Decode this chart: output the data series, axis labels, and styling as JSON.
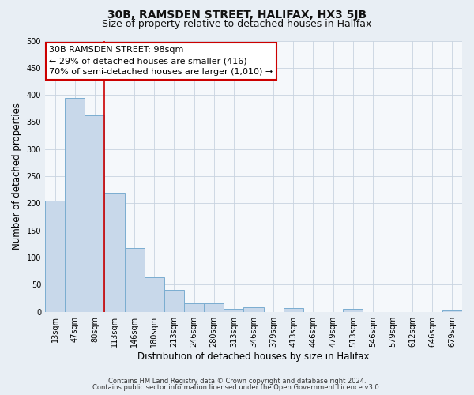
{
  "title": "30B, RAMSDEN STREET, HALIFAX, HX3 5JB",
  "subtitle": "Size of property relative to detached houses in Halifax",
  "xlabel": "Distribution of detached houses by size in Halifax",
  "ylabel": "Number of detached properties",
  "bar_labels": [
    "13sqm",
    "47sqm",
    "80sqm",
    "113sqm",
    "146sqm",
    "180sqm",
    "213sqm",
    "246sqm",
    "280sqm",
    "313sqm",
    "346sqm",
    "379sqm",
    "413sqm",
    "446sqm",
    "479sqm",
    "513sqm",
    "546sqm",
    "579sqm",
    "612sqm",
    "646sqm",
    "679sqm"
  ],
  "bar_values": [
    205,
    395,
    362,
    220,
    117,
    63,
    40,
    15,
    15,
    5,
    8,
    0,
    7,
    0,
    0,
    5,
    0,
    0,
    0,
    0,
    2
  ],
  "bar_color": "#c8d8ea",
  "bar_edgecolor": "#7aadd0",
  "vline_x_idx": 2.5,
  "vline_color": "#cc0000",
  "ylim": [
    0,
    500
  ],
  "yticks": [
    0,
    50,
    100,
    150,
    200,
    250,
    300,
    350,
    400,
    450,
    500
  ],
  "annotation_text": "30B RAMSDEN STREET: 98sqm\n← 29% of detached houses are smaller (416)\n70% of semi-detached houses are larger (1,010) →",
  "annotation_box_facecolor": "#ffffff",
  "annotation_box_edgecolor": "#cc0000",
  "footer_line1": "Contains HM Land Registry data © Crown copyright and database right 2024.",
  "footer_line2": "Contains public sector information licensed under the Open Government Licence v3.0.",
  "fig_facecolor": "#e8eef4",
  "plot_facecolor": "#f5f8fb",
  "grid_color": "#c8d4e0",
  "title_fontsize": 10,
  "subtitle_fontsize": 9,
  "xlabel_fontsize": 8.5,
  "ylabel_fontsize": 8.5,
  "tick_fontsize": 7,
  "annot_fontsize": 8,
  "footer_fontsize": 6
}
